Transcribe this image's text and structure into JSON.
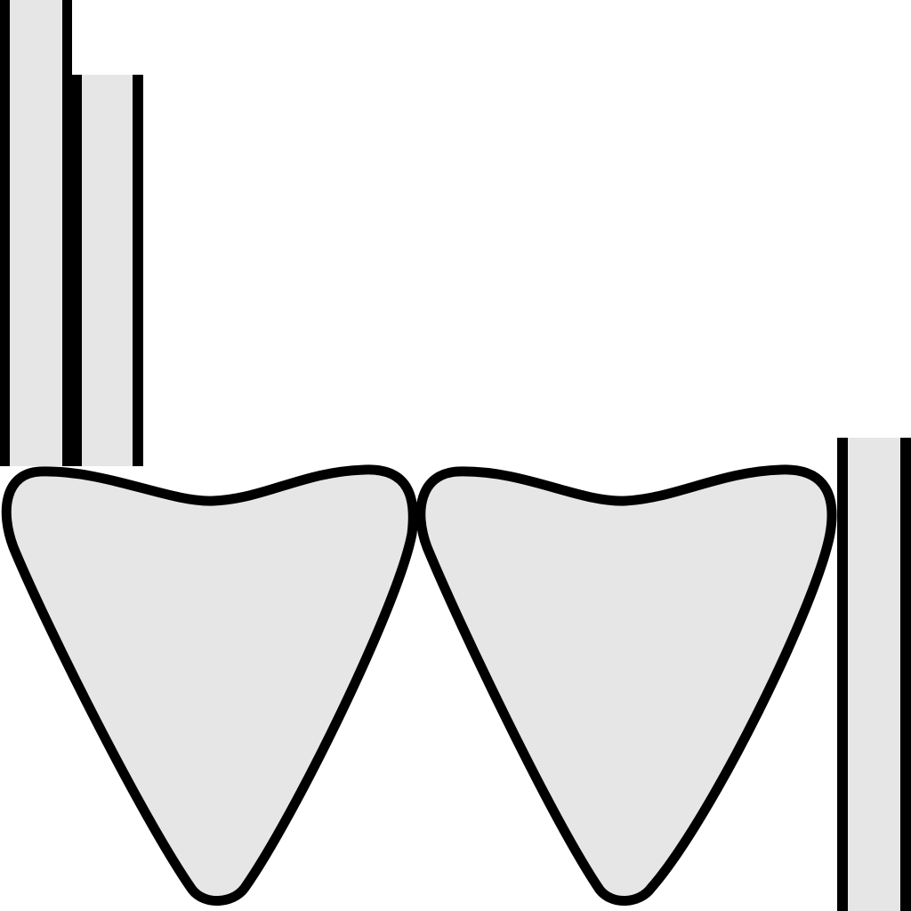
{
  "colors": {
    "background": "#ffffff",
    "fill": "#e6e6e6",
    "stroke": "#000000"
  },
  "shapes": {
    "bars": [
      {
        "name": "left-tall-bar"
      },
      {
        "name": "left-short-bar"
      },
      {
        "name": "right-edge-bar"
      }
    ],
    "pick_shapes": [
      {
        "name": "left-pick-shape"
      },
      {
        "name": "right-pick-shape"
      }
    ]
  }
}
